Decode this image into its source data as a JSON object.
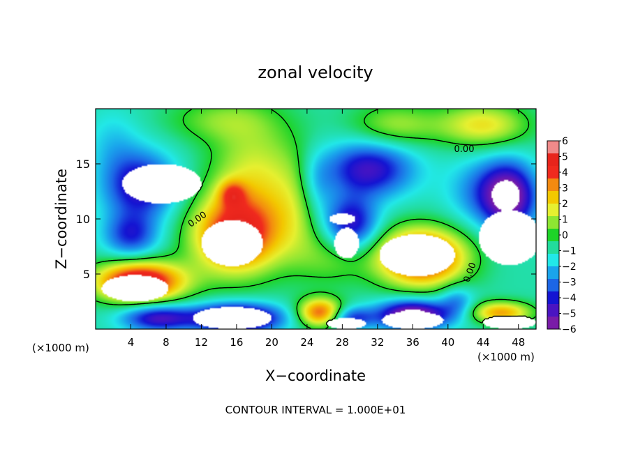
{
  "chart_data": {
    "type": "heatmap",
    "title": "zonal velocity",
    "xlabel": "X−coordinate",
    "ylabel": "Z−coordinate",
    "x_units_left": "(×1000 m)",
    "x_units_right": "(×1000 m)",
    "footer": "CONTOUR INTERVAL = 1.000E+01",
    "xlim": [
      0,
      50
    ],
    "ylim": [
      0,
      20
    ],
    "x_ticks": [
      4,
      8,
      12,
      16,
      20,
      24,
      28,
      32,
      36,
      40,
      44,
      48
    ],
    "y_ticks": [
      5,
      10,
      15
    ],
    "colorbar": {
      "ticks": [
        6,
        5,
        4,
        3,
        2,
        1,
        0,
        -1,
        -2,
        -3,
        -4,
        -5,
        -6
      ],
      "colors": [
        "#f08a8a",
        "#e8241c",
        "#f02a1e",
        "#f38a10",
        "#f3c800",
        "#e6f030",
        "#8ee632",
        "#1ed428",
        "#22dc9c",
        "#22e8e8",
        "#1aa4ec",
        "#1c66e6",
        "#1414d2",
        "#4a14c2",
        "#7a1ca8"
      ]
    },
    "contour_labels": [
      "0.00",
      "0.00",
      "0.00"
    ],
    "field": {
      "base": -1,
      "blobs": [
        {
          "x": 18,
          "y": 14,
          "sx": 5,
          "sy": 5,
          "v": 2.5
        },
        {
          "x": 15.5,
          "y": 12.3,
          "sx": 1.5,
          "sy": 1.2,
          "v": 2.5
        },
        {
          "x": 23,
          "y": 11,
          "sx": 3,
          "sy": 5,
          "v": 1.5
        },
        {
          "x": 14,
          "y": 19,
          "sx": 6,
          "sy": 2,
          "v": 1.5
        },
        {
          "x": 44,
          "y": 18.5,
          "sx": 5,
          "sy": 2,
          "v": 3
        },
        {
          "x": 34,
          "y": 18.5,
          "sx": 5,
          "sy": 2,
          "v": 2
        },
        {
          "x": 27,
          "y": 6.5,
          "sx": 4,
          "sy": 2.5,
          "v": 1.5
        },
        {
          "x": 5,
          "y": 13,
          "sx": 4,
          "sy": 3,
          "v": -4
        },
        {
          "x": 4,
          "y": 8.5,
          "sx": 3,
          "sy": 2,
          "v": -3
        },
        {
          "x": 2,
          "y": 17,
          "sx": 3,
          "sy": 3,
          "v": -1
        },
        {
          "x": 29,
          "y": 9.5,
          "sx": 3,
          "sy": 2.5,
          "v": -4
        },
        {
          "x": 31,
          "y": 14.5,
          "sx": 5,
          "sy": 2.5,
          "v": -4
        },
        {
          "x": 47,
          "y": 12,
          "sx": 3,
          "sy": 3,
          "v": -5
        },
        {
          "x": 44,
          "y": 12.5,
          "sx": 4,
          "sy": 3,
          "v": -2
        },
        {
          "x": 25,
          "y": 13,
          "sx": 2,
          "sy": 3,
          "v": -1.5
        },
        {
          "x": 5,
          "y": 4.3,
          "sx": 5,
          "sy": 1.8,
          "v": 7
        },
        {
          "x": 16,
          "y": 8.5,
          "sx": 5,
          "sy": 3.5,
          "v": 6
        },
        {
          "x": 37,
          "y": 6.5,
          "sx": 5,
          "sy": 2.6,
          "v": 6.5
        },
        {
          "x": 25.5,
          "y": 1.5,
          "sx": 2.5,
          "sy": 1.3,
          "v": 5
        },
        {
          "x": 46,
          "y": 1.5,
          "sx": 3.5,
          "sy": 1.0,
          "v": 4
        },
        {
          "x": 7,
          "y": 1,
          "sx": 4,
          "sy": 1.2,
          "v": -4
        },
        {
          "x": 16,
          "y": 1,
          "sx": 5,
          "sy": 1.3,
          "v": -6
        },
        {
          "x": 36,
          "y": 1.3,
          "sx": 4,
          "sy": 1.3,
          "v": -6
        },
        {
          "x": 29,
          "y": 1,
          "sx": 2.5,
          "sy": 1,
          "v": -3
        },
        {
          "x": 41,
          "y": 2.5,
          "sx": 2,
          "sy": 1.5,
          "v": -2
        }
      ],
      "cutouts": [
        {
          "x": 7.5,
          "y": 13.2,
          "rx": 4.5,
          "ry": 1.8,
          "v": -8
        },
        {
          "x": 4.5,
          "y": 3.7,
          "rx": 3.8,
          "ry": 1.2,
          "v": 8
        },
        {
          "x": 15.5,
          "y": 7.8,
          "rx": 3.5,
          "ry": 2.1,
          "v": 8
        },
        {
          "x": 36.5,
          "y": 6.7,
          "rx": 4.3,
          "ry": 1.9,
          "v": 8
        },
        {
          "x": 28.5,
          "y": 7.8,
          "rx": 1.4,
          "ry": 1.4,
          "v": -8
        },
        {
          "x": 28,
          "y": 10.0,
          "rx": 1.5,
          "ry": 0.5,
          "v": -8
        },
        {
          "x": 47,
          "y": 8.3,
          "rx": 3.5,
          "ry": 2.5,
          "v": -8
        },
        {
          "x": 15.5,
          "y": 1.0,
          "rx": 4.5,
          "ry": 1.0,
          "v": -8
        },
        {
          "x": 28.5,
          "y": 0.5,
          "rx": 2.2,
          "ry": 0.5,
          "v": -8
        },
        {
          "x": 36,
          "y": 0.8,
          "rx": 3.5,
          "ry": 0.8,
          "v": -8
        },
        {
          "x": 47,
          "y": 0.6,
          "rx": 3.0,
          "ry": 0.6,
          "v": -8
        }
      ]
    }
  }
}
